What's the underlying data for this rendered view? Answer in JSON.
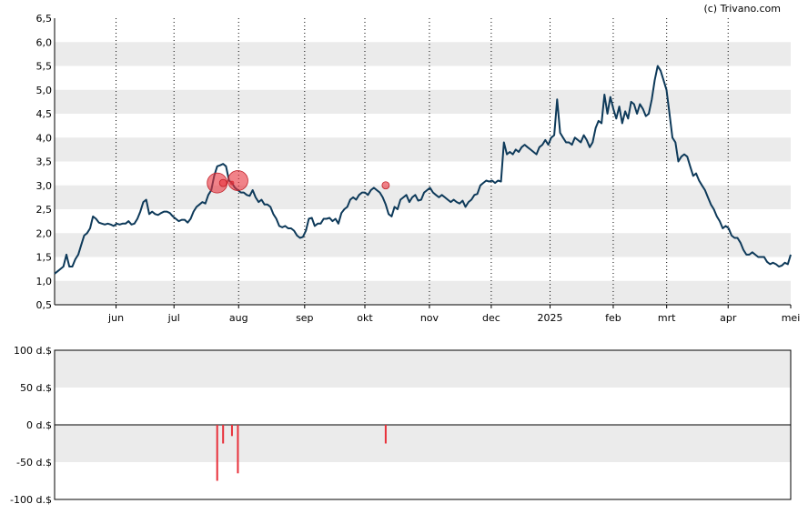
{
  "credit": "(c) Trivano.com",
  "chart_data": [
    {
      "type": "line",
      "title": "",
      "xlabel": "",
      "ylabel": "",
      "ylim": [
        0.5,
        6.5
      ],
      "y_ticks": [
        "6,5",
        "6,0",
        "5,5",
        "5,0",
        "4,5",
        "4,0",
        "3,5",
        "3,0",
        "2,5",
        "2,0",
        "1,5",
        "1,0",
        "0,5"
      ],
      "x_ticks": [
        "jun",
        "jul",
        "aug",
        "sep",
        "okt",
        "nov",
        "dec",
        "2025",
        "feb",
        "mrt",
        "apr",
        "mei"
      ],
      "grid": "alternating horizontal bands, dotted vertical month lines",
      "line_color": "#0e3a5a",
      "series": [
        {
          "values": [
            1.15,
            1.2,
            1.25,
            1.3,
            1.55,
            1.3,
            1.3,
            1.45,
            1.55,
            1.75,
            1.95,
            2.0,
            2.1,
            2.35,
            2.3,
            2.22,
            2.2,
            2.18,
            2.2,
            2.18,
            2.15,
            2.2,
            2.18,
            2.2,
            2.2,
            2.25,
            2.18,
            2.2,
            2.3,
            2.45,
            2.65,
            2.7,
            2.4,
            2.45,
            2.4,
            2.38,
            2.42,
            2.45,
            2.45,
            2.42,
            2.35,
            2.3,
            2.25,
            2.28,
            2.28,
            2.22,
            2.3,
            2.45,
            2.55,
            2.6,
            2.65,
            2.62,
            2.8,
            2.9,
            3.2,
            3.4,
            3.42,
            3.45,
            3.4,
            3.1,
            3.05,
            2.95,
            2.9,
            2.85,
            2.85,
            2.8,
            2.78,
            2.9,
            2.75,
            2.65,
            2.7,
            2.6,
            2.6,
            2.55,
            2.4,
            2.3,
            2.15,
            2.12,
            2.15,
            2.1,
            2.1,
            2.05,
            1.95,
            1.9,
            1.92,
            2.05,
            2.3,
            2.32,
            2.15,
            2.2,
            2.2,
            2.3,
            2.3,
            2.32,
            2.25,
            2.3,
            2.2,
            2.42,
            2.5,
            2.55,
            2.7,
            2.75,
            2.7,
            2.8,
            2.85,
            2.85,
            2.8,
            2.9,
            2.95,
            2.9,
            2.85,
            2.75,
            2.6,
            2.4,
            2.35,
            2.55,
            2.5,
            2.7,
            2.75,
            2.8,
            2.65,
            2.75,
            2.8,
            2.68,
            2.7,
            2.85,
            2.9,
            2.95,
            2.85,
            2.8,
            2.75,
            2.8,
            2.75,
            2.7,
            2.65,
            2.7,
            2.65,
            2.62,
            2.68,
            2.55,
            2.65,
            2.7,
            2.8,
            2.82,
            3.0,
            3.05,
            3.1,
            3.08,
            3.1,
            3.05,
            3.1,
            3.08,
            3.9,
            3.65,
            3.7,
            3.65,
            3.75,
            3.7,
            3.8,
            3.85,
            3.8,
            3.75,
            3.7,
            3.65,
            3.8,
            3.85,
            3.95,
            3.85,
            4.0,
            4.05,
            4.8,
            4.1,
            4.0,
            3.9,
            3.9,
            3.85,
            4.0,
            3.95,
            3.9,
            4.05,
            3.95,
            3.8,
            3.9,
            4.2,
            4.35,
            4.3,
            4.9,
            4.5,
            4.85,
            4.6,
            4.4,
            4.65,
            4.3,
            4.55,
            4.4,
            4.75,
            4.7,
            4.5,
            4.7,
            4.6,
            4.45,
            4.5,
            4.8,
            5.2,
            5.5,
            5.4,
            5.2,
            5.0,
            4.5,
            4.0,
            3.9,
            3.5,
            3.6,
            3.65,
            3.6,
            3.4,
            3.2,
            3.25,
            3.1,
            3.0,
            2.9,
            2.75,
            2.6,
            2.5,
            2.35,
            2.25,
            2.1,
            2.15,
            2.1,
            1.95,
            1.9,
            1.9,
            1.8,
            1.65,
            1.55,
            1.55,
            1.6,
            1.55,
            1.5,
            1.5,
            1.5,
            1.4,
            1.35,
            1.38,
            1.35,
            1.3,
            1.32,
            1.38,
            1.35,
            1.55
          ]
        }
      ],
      "annotations": [
        {
          "type": "bubble",
          "x_index": 55,
          "y": 3.05,
          "size": "large",
          "color": "#e8303a"
        },
        {
          "type": "bubble",
          "x_index": 57,
          "y": 3.05,
          "size": "small",
          "color": "#e8303a"
        },
        {
          "type": "bubble",
          "x_index": 60,
          "y": 3.05,
          "size": "tiny",
          "color": "#e8303a"
        },
        {
          "type": "bubble",
          "x_index": 62,
          "y": 3.1,
          "size": "large",
          "color": "#e8303a"
        },
        {
          "type": "bubble",
          "x_index": 112,
          "y": 3.0,
          "size": "small",
          "color": "#e8303a"
        }
      ]
    },
    {
      "type": "bar",
      "title": "",
      "xlabel": "",
      "ylabel": "",
      "ylim": [
        -100,
        100
      ],
      "y_ticks": [
        "100 d.$",
        "50 d.$",
        "0 d.$",
        "-50 d.$",
        "-100 d.$"
      ],
      "bar_color": "#e8303a",
      "x_index": [
        55,
        57,
        60,
        62,
        112
      ],
      "values": [
        -75,
        -25,
        -15,
        -65,
        -25
      ]
    }
  ]
}
